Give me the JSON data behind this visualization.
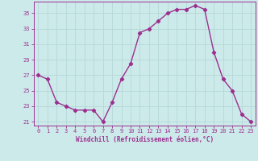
{
  "x": [
    0,
    1,
    2,
    3,
    4,
    5,
    6,
    7,
    8,
    9,
    10,
    11,
    12,
    13,
    14,
    15,
    16,
    17,
    18,
    19,
    20,
    21,
    22,
    23
  ],
  "y": [
    27,
    26.5,
    23.5,
    23,
    22.5,
    22.5,
    22.5,
    21,
    23.5,
    26.5,
    28.5,
    32.5,
    33,
    34,
    35,
    35.5,
    35.5,
    36,
    35.5,
    30,
    26.5,
    25,
    22,
    21
  ],
  "line_color": "#9b308f",
  "marker": "D",
  "marker_size": 2.2,
  "background_color": "#cdeaea",
  "grid_color": "#b8dada",
  "xlabel": "Windchill (Refroidissement éolien,°C)",
  "xlim": [
    -0.5,
    23.5
  ],
  "ylim": [
    20.5,
    36.5
  ],
  "yticks": [
    21,
    23,
    25,
    27,
    29,
    31,
    33,
    35
  ],
  "xticks": [
    0,
    1,
    2,
    3,
    4,
    5,
    6,
    7,
    8,
    9,
    10,
    11,
    12,
    13,
    14,
    15,
    16,
    17,
    18,
    19,
    20,
    21,
    22,
    23
  ],
  "xlabel_color": "#9b308f",
  "tick_color": "#9b308f",
  "axis_color": "#9b308f",
  "tick_labelsize": 5.0,
  "xlabel_fontsize": 5.5,
  "linewidth": 1.0
}
